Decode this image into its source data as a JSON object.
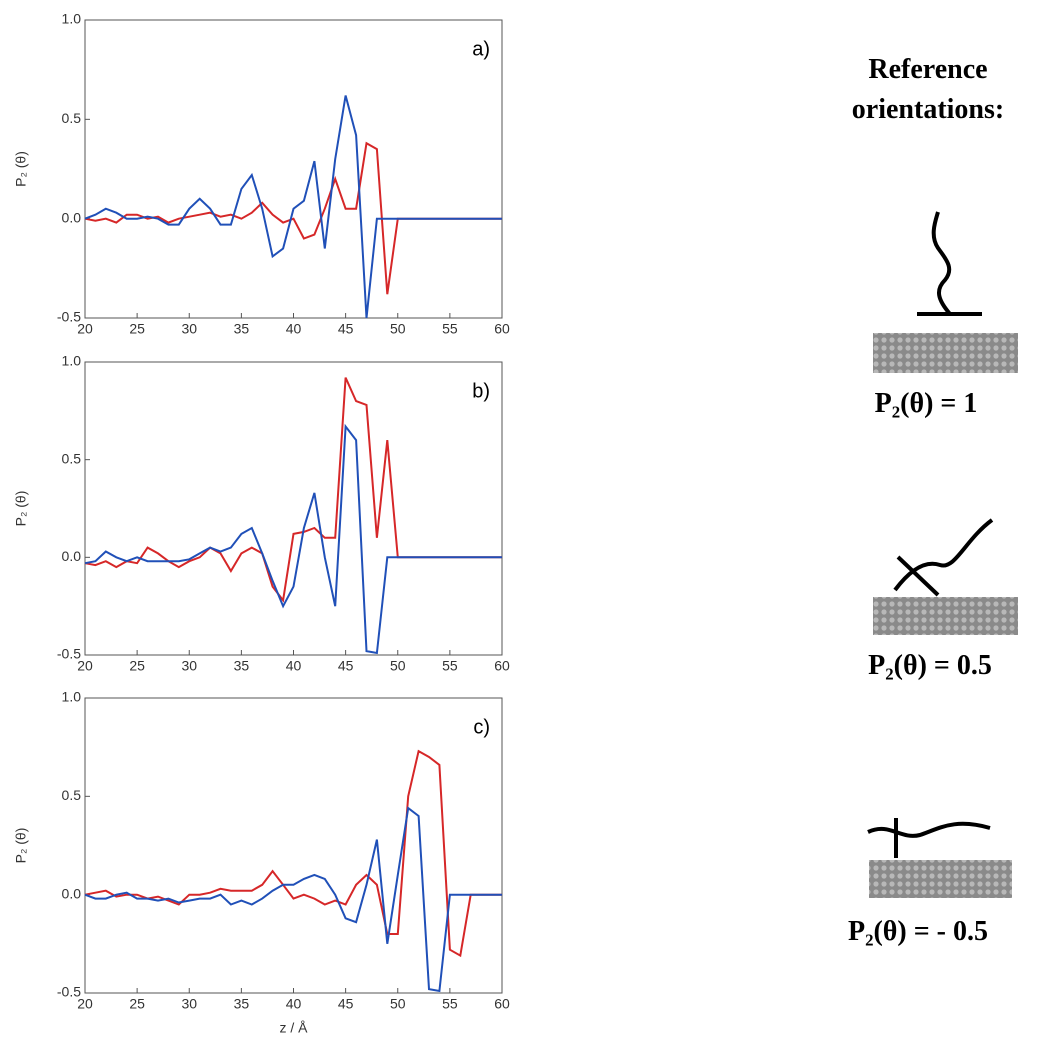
{
  "chart_data": [
    {
      "type": "line",
      "annotation": "a)",
      "ylabel": "P₂ (θ)",
      "x": [
        20,
        21,
        22,
        23,
        24,
        25,
        26,
        27,
        28,
        29,
        30,
        31,
        32,
        33,
        34,
        35,
        36,
        37,
        38,
        39,
        40,
        41,
        42,
        43,
        44,
        45,
        46,
        47,
        48,
        49,
        50,
        51,
        52,
        53,
        54,
        55,
        56,
        57,
        58,
        59,
        60
      ],
      "series": [
        {
          "color": "#d62728",
          "values": [
            0.0,
            -0.01,
            0.0,
            -0.02,
            0.02,
            0.02,
            0.0,
            0.01,
            -0.02,
            0.0,
            0.01,
            0.02,
            0.03,
            0.01,
            0.02,
            0.0,
            0.03,
            0.08,
            0.02,
            -0.02,
            0.0,
            -0.1,
            -0.08,
            0.05,
            0.2,
            0.05,
            0.05,
            0.38,
            0.35,
            -0.38,
            0,
            0,
            0,
            0,
            0,
            0,
            0,
            0,
            0,
            0,
            0
          ]
        },
        {
          "color": "#2050b8",
          "values": [
            0.0,
            0.02,
            0.05,
            0.03,
            0.0,
            0.0,
            0.01,
            0.0,
            -0.03,
            -0.03,
            0.05,
            0.1,
            0.05,
            -0.03,
            -0.03,
            0.15,
            0.22,
            0.05,
            -0.19,
            -0.15,
            0.05,
            0.09,
            0.29,
            -0.15,
            0.3,
            0.62,
            0.42,
            -0.5,
            0,
            0,
            0,
            0,
            0,
            0,
            0,
            0,
            0,
            0,
            0,
            0,
            0
          ]
        }
      ],
      "xlim": [
        20,
        60
      ],
      "xticks": [
        20,
        25,
        30,
        35,
        40,
        45,
        50,
        55,
        60
      ],
      "ylim": [
        -0.5,
        1.0
      ],
      "yticks": [
        {
          "value": -0.5,
          "label": "-0.5"
        },
        {
          "value": 0,
          "label": "0.0"
        },
        {
          "value": 0.5,
          "label": "0.5"
        },
        {
          "value": 1,
          "label": "1.0"
        }
      ]
    },
    {
      "type": "line",
      "annotation": "b)",
      "ylabel": "P₂ (θ)",
      "x": [
        20,
        21,
        22,
        23,
        24,
        25,
        26,
        27,
        28,
        29,
        30,
        31,
        32,
        33,
        34,
        35,
        36,
        37,
        38,
        39,
        40,
        41,
        42,
        43,
        44,
        45,
        46,
        47,
        48,
        49,
        50,
        51,
        52,
        53,
        54,
        55,
        56,
        57,
        58,
        59,
        60
      ],
      "series": [
        {
          "color": "#d62728",
          "values": [
            -0.03,
            -0.04,
            -0.02,
            -0.05,
            -0.02,
            -0.03,
            0.05,
            0.02,
            -0.02,
            -0.05,
            -0.02,
            0.0,
            0.05,
            0.02,
            -0.07,
            0.02,
            0.05,
            0.02,
            -0.15,
            -0.22,
            0.12,
            0.13,
            0.15,
            0.1,
            0.1,
            0.92,
            0.8,
            0.78,
            0.1,
            0.6,
            0,
            0,
            0,
            0,
            0,
            0,
            0,
            0,
            0,
            0,
            0
          ]
        },
        {
          "color": "#2050b8",
          "values": [
            -0.03,
            -0.02,
            0.03,
            0.0,
            -0.02,
            0.0,
            -0.02,
            -0.02,
            -0.02,
            -0.02,
            -0.01,
            0.02,
            0.05,
            0.03,
            0.05,
            0.12,
            0.15,
            0.02,
            -0.12,
            -0.25,
            -0.15,
            0.15,
            0.33,
            0.0,
            -0.25,
            0.67,
            0.6,
            -0.48,
            -0.49,
            0,
            0,
            0,
            0,
            0,
            0,
            0,
            0,
            0,
            0,
            0,
            0
          ]
        }
      ],
      "xlim": [
        20,
        60
      ],
      "xticks": [
        20,
        25,
        30,
        35,
        40,
        45,
        50,
        55,
        60
      ],
      "ylim": [
        -0.5,
        1.0
      ],
      "yticks": [
        {
          "value": -0.5,
          "label": "-0.5"
        },
        {
          "value": 0,
          "label": "0.0"
        },
        {
          "value": 0.5,
          "label": "0.5"
        },
        {
          "value": 1,
          "label": "1.0"
        }
      ]
    },
    {
      "type": "line",
      "annotation": "c)",
      "ylabel": "P₂ (θ)",
      "xlabel": "z / Å",
      "x": [
        20,
        21,
        22,
        23,
        24,
        25,
        26,
        27,
        28,
        29,
        30,
        31,
        32,
        33,
        34,
        35,
        36,
        37,
        38,
        39,
        40,
        41,
        42,
        43,
        44,
        45,
        46,
        47,
        48,
        49,
        50,
        51,
        52,
        53,
        54,
        55,
        56,
        57,
        58,
        59,
        60
      ],
      "series": [
        {
          "color": "#d62728",
          "values": [
            0.0,
            0.01,
            0.02,
            -0.01,
            0.0,
            0.0,
            -0.02,
            -0.01,
            -0.03,
            -0.05,
            0.0,
            0.0,
            0.01,
            0.03,
            0.02,
            0.02,
            0.02,
            0.05,
            0.12,
            0.05,
            -0.02,
            0.0,
            -0.02,
            -0.05,
            -0.03,
            -0.05,
            0.05,
            0.1,
            0.05,
            -0.2,
            -0.2,
            0.5,
            0.73,
            0.7,
            0.66,
            -0.28,
            -0.31,
            0,
            0,
            0,
            0
          ]
        },
        {
          "color": "#2050b8",
          "values": [
            0.0,
            -0.02,
            -0.02,
            0.0,
            0.01,
            -0.02,
            -0.02,
            -0.03,
            -0.02,
            -0.04,
            -0.03,
            -0.02,
            -0.02,
            0.0,
            -0.05,
            -0.03,
            -0.05,
            -0.02,
            0.02,
            0.05,
            0.05,
            0.08,
            0.1,
            0.08,
            0.0,
            -0.12,
            -0.14,
            0.05,
            0.28,
            -0.25,
            0.1,
            0.44,
            0.4,
            -0.48,
            -0.49,
            0,
            0,
            0,
            0,
            0,
            0
          ]
        }
      ],
      "xlim": [
        20,
        60
      ],
      "xticks": [
        20,
        25,
        30,
        35,
        40,
        45,
        50,
        55,
        60
      ],
      "ylim": [
        -0.5,
        1.0
      ],
      "yticks": [
        {
          "value": -0.5,
          "label": "-0.5"
        },
        {
          "value": 0,
          "label": "0.0"
        },
        {
          "value": 0.5,
          "label": "0.5"
        },
        {
          "value": 1,
          "label": "1.0"
        }
      ]
    }
  ],
  "reference": {
    "title_lines": [
      "Reference",
      "orientations:"
    ],
    "labels": [
      "P₂(θ) = 1",
      "P₂(θ) = 0.5",
      "P₂(θ) = - 0.5"
    ]
  }
}
